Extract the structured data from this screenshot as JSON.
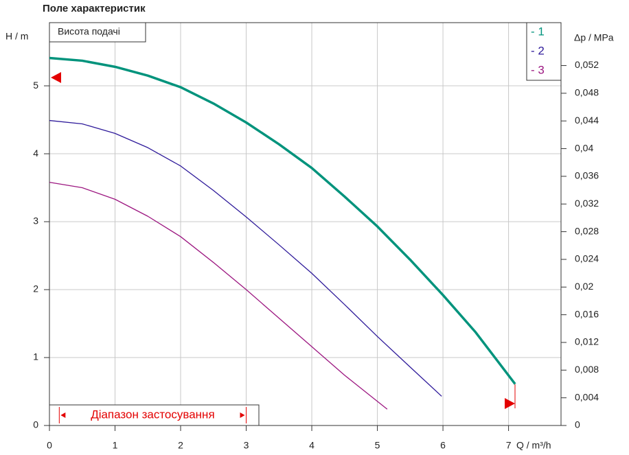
{
  "chart_data": {
    "type": "line",
    "title": "Поле характеристик",
    "ylabel": "H / m",
    "y2label": "Δp / MPa",
    "xlabel": "Q / m³/h",
    "annotation": "Висота подачі",
    "xlim": [
      0,
      7.8
    ],
    "ylim": [
      0,
      5.93
    ],
    "y2lim": [
      0,
      0.0582
    ],
    "xticks": [
      0,
      1,
      2,
      3,
      4,
      5,
      6,
      7
    ],
    "yticks": [
      0,
      1,
      2,
      3,
      4,
      5
    ],
    "y2ticks": [
      0,
      {
        "value": 0.004,
        "label": "0,004"
      },
      {
        "value": 0.008,
        "label": "0,008"
      },
      {
        "value": 0.012,
        "label": "0,012"
      },
      {
        "value": 0.016,
        "label": "0,016"
      },
      {
        "value": 0.02,
        "label": "0,02"
      },
      {
        "value": 0.024,
        "label": "0,024"
      },
      {
        "value": 0.028,
        "label": "0,028"
      },
      {
        "value": 0.032,
        "label": "0,032"
      },
      {
        "value": 0.036,
        "label": "0,036"
      },
      {
        "value": 0.04,
        "label": "0,04"
      },
      {
        "value": 0.044,
        "label": "0,044"
      },
      {
        "value": 0.048,
        "label": "0,048"
      },
      {
        "value": 0.052,
        "label": "0,052"
      }
    ],
    "grid": true,
    "legend": "top-right",
    "application_range": {
      "label": "Діапазон застосування",
      "from": 0.15,
      "to": 3.0
    },
    "series": [
      {
        "name": "- 1",
        "color": "#00937c",
        "width": 3.5,
        "x": [
          0,
          0.5,
          1,
          1.5,
          2,
          2.5,
          3,
          3.5,
          4,
          4.5,
          5,
          5.5,
          6,
          6.5,
          7.1
        ],
        "values": [
          5.41,
          5.37,
          5.28,
          5.15,
          4.98,
          4.74,
          4.46,
          4.14,
          3.79,
          3.37,
          2.93,
          2.44,
          1.92,
          1.37,
          0.61
        ]
      },
      {
        "name": "- 2",
        "color": "#2e1a9a",
        "width": 1.3,
        "x": [
          0,
          0.5,
          1,
          1.5,
          2,
          2.5,
          3,
          3.5,
          4,
          4.5,
          5,
          5.5,
          5.98
        ],
        "values": [
          4.49,
          4.44,
          4.3,
          4.09,
          3.82,
          3.46,
          3.07,
          2.66,
          2.24,
          1.78,
          1.31,
          0.86,
          0.43
        ]
      },
      {
        "name": "- 3",
        "color": "#9c1680",
        "width": 1.3,
        "x": [
          0,
          0.5,
          1,
          1.5,
          2,
          2.5,
          3,
          3.5,
          4,
          4.5,
          5.15
        ],
        "values": [
          3.58,
          3.5,
          3.33,
          3.08,
          2.78,
          2.4,
          2.0,
          1.58,
          1.16,
          0.74,
          0.24
        ]
      }
    ]
  }
}
